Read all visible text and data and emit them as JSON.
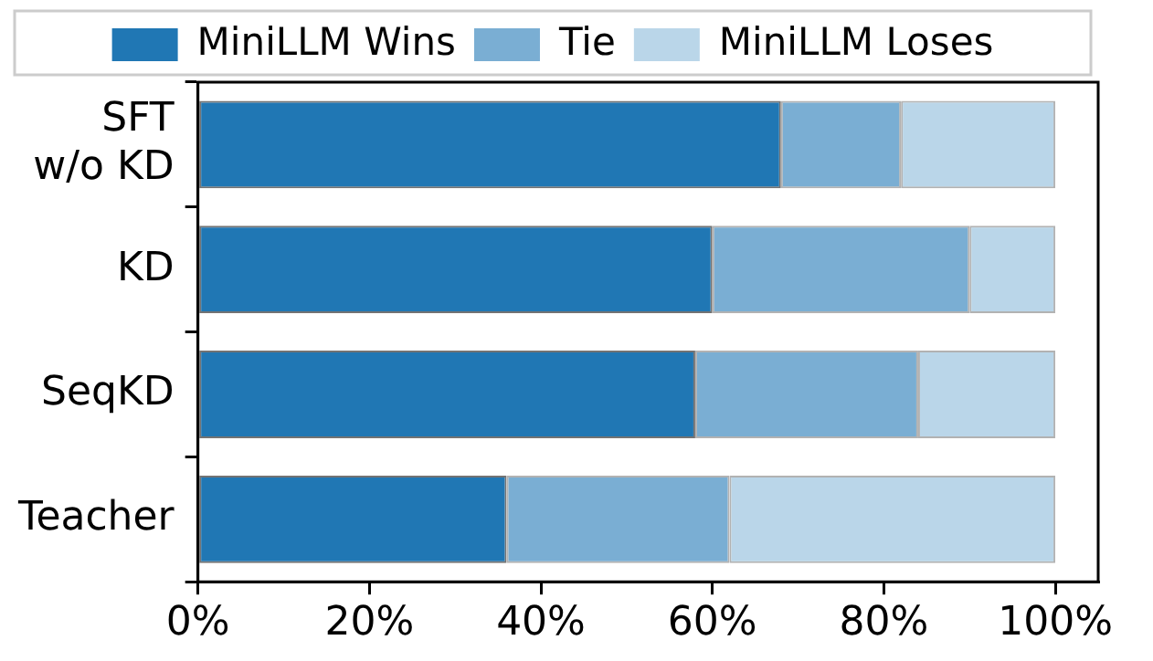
{
  "chart_data": {
    "type": "bar",
    "orientation": "horizontal",
    "stacked": true,
    "categories": [
      "SFT\nw/o KD",
      "KD",
      "SeqKD",
      "Teacher"
    ],
    "series": [
      {
        "name": "MiniLLM Wins",
        "color": "#2077b4",
        "values": [
          68,
          60,
          58,
          36
        ]
      },
      {
        "name": "Tie",
        "color": "#7aaed3",
        "values": [
          14,
          30,
          26,
          26
        ]
      },
      {
        "name": "MiniLLM Loses",
        "color": "#bad6e9",
        "values": [
          18,
          10,
          16,
          38
        ]
      }
    ],
    "xlim": [
      0,
      105
    ],
    "xticks": [
      {
        "value": 0,
        "label": "0%"
      },
      {
        "value": 20,
        "label": "20%"
      },
      {
        "value": 40,
        "label": "40%"
      },
      {
        "value": 60,
        "label": "60%"
      },
      {
        "value": 80,
        "label": "80%"
      },
      {
        "value": 100,
        "label": "100%"
      }
    ],
    "grid": false,
    "legend": "top"
  }
}
